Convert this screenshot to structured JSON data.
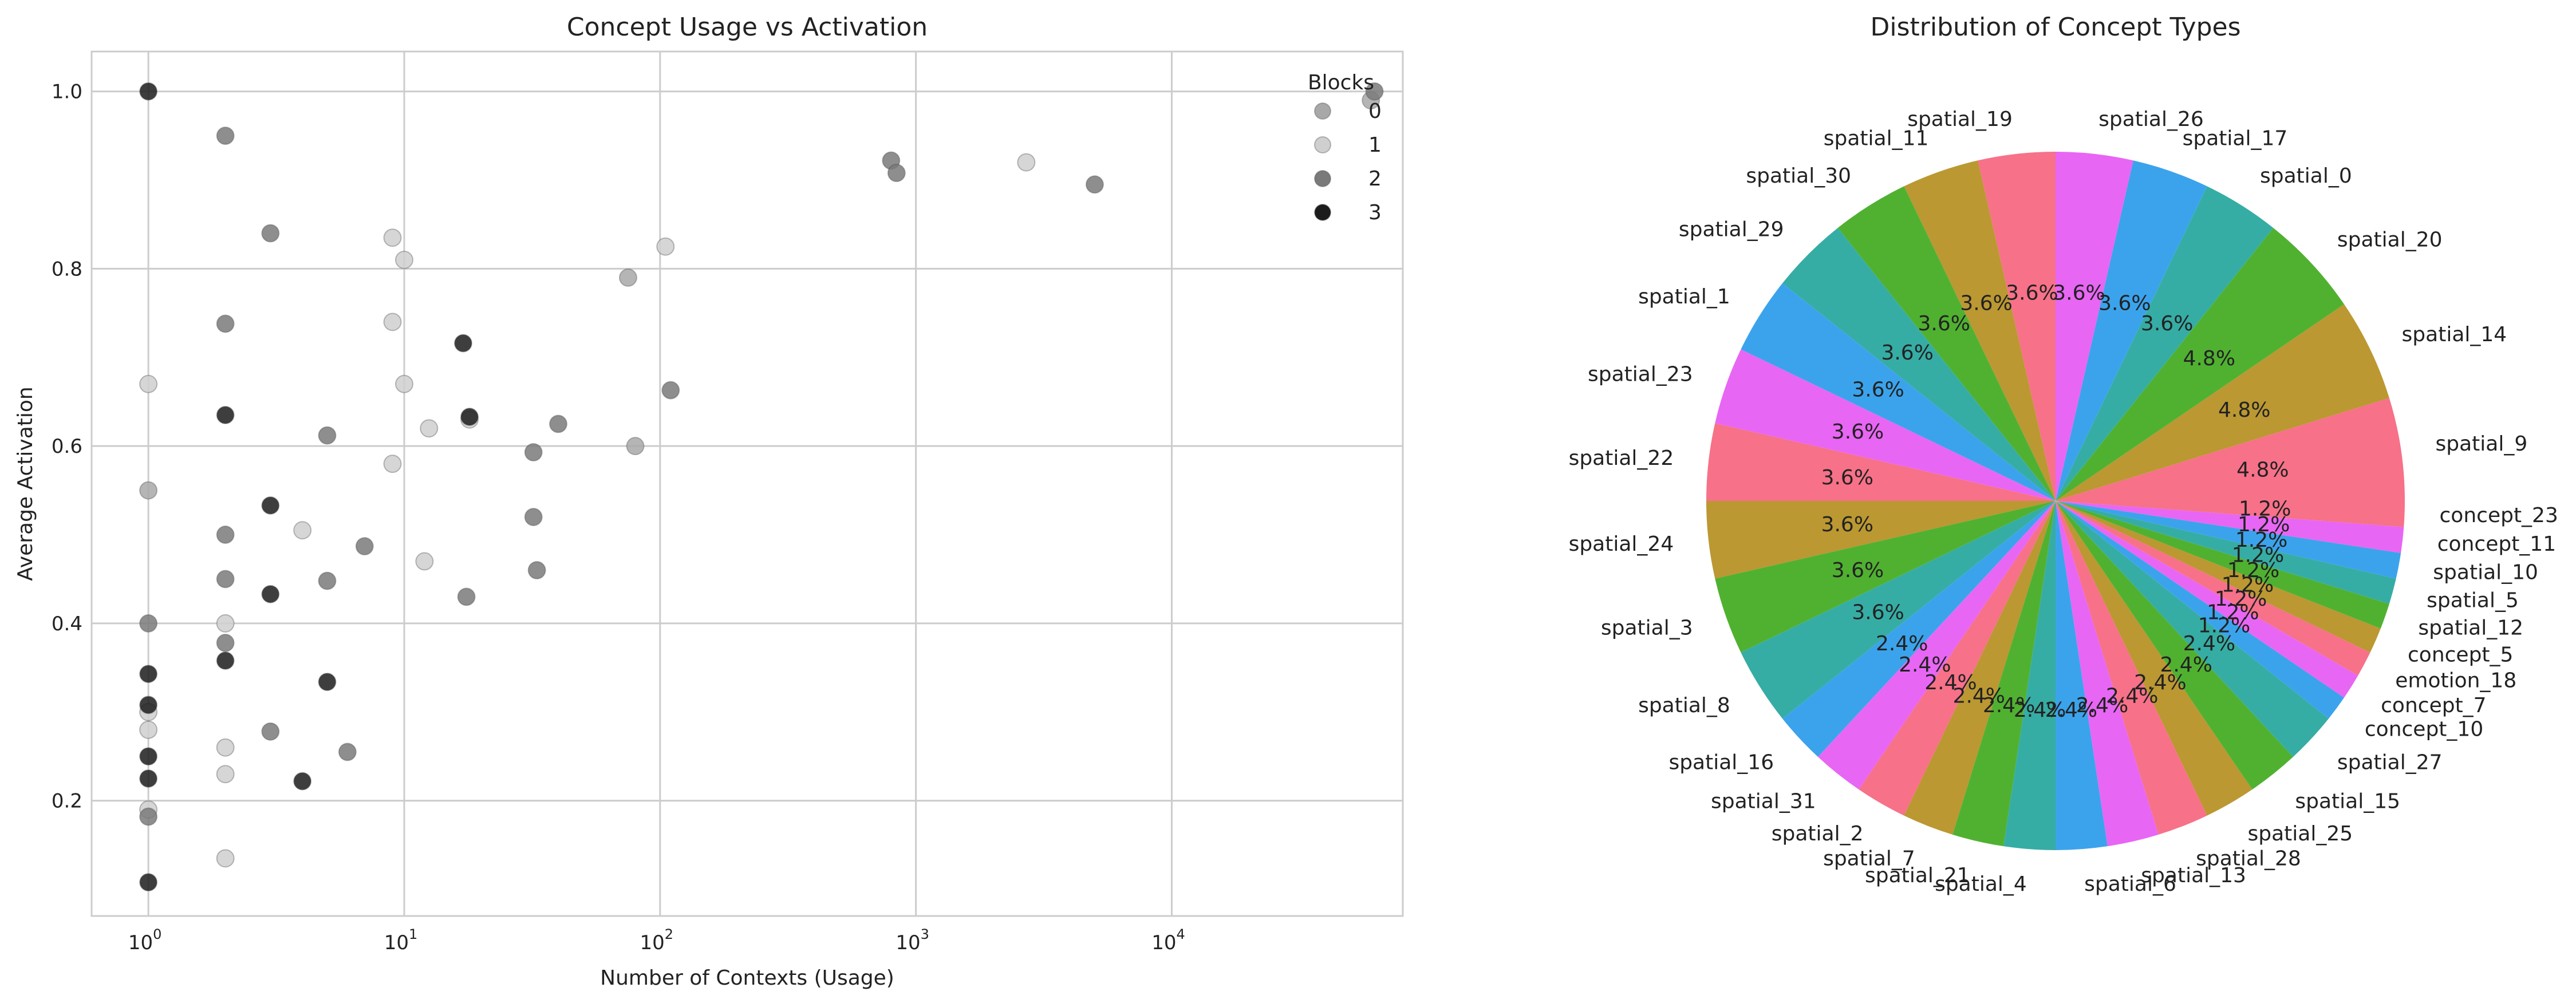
{
  "chart_data": [
    {
      "type": "scatter",
      "title": "Concept Usage vs Activation",
      "xlabel": "Number of Contexts (Usage)",
      "ylabel": "Average Activation",
      "xscale": "log",
      "xlim": [
        0.6,
        80000
      ],
      "ylim": [
        0.07,
        1.045
      ],
      "x_ticks": [
        {
          "value": 1,
          "base": "10",
          "exp": "0"
        },
        {
          "value": 10,
          "base": "10",
          "exp": "1"
        },
        {
          "value": 100,
          "base": "10",
          "exp": "2"
        },
        {
          "value": 1000,
          "base": "10",
          "exp": "3"
        },
        {
          "value": 10000,
          "base": "10",
          "exp": "4"
        }
      ],
      "y_ticks": [
        "0.2",
        "0.4",
        "0.6",
        "0.8",
        "1.0"
      ],
      "grid": true,
      "legend": {
        "title": "Blocks",
        "placement": "top-right",
        "entries": [
          {
            "label": "0",
            "color": "#a8a8a8"
          },
          {
            "label": "1",
            "color": "#cfcfcf"
          },
          {
            "label": "2",
            "color": "#7a7a7a"
          },
          {
            "label": "3",
            "color": "#1c1c1c"
          }
        ]
      },
      "series": [
        {
          "name": "0",
          "color": "#a8a8a8",
          "points": [
            [
              60000,
              0.99
            ],
            [
              1,
              0.55
            ],
            [
              80,
              0.6
            ],
            [
              75,
              0.79
            ]
          ]
        },
        {
          "name": "1",
          "color": "#cfcfcf",
          "points": [
            [
              1,
              0.67
            ],
            [
              1,
              0.28
            ],
            [
              1,
              0.3
            ],
            [
              2,
              0.26
            ],
            [
              2,
              0.23
            ],
            [
              2,
              0.135
            ],
            [
              2,
              0.4
            ],
            [
              4,
              0.505
            ],
            [
              9,
              0.835
            ],
            [
              10,
              0.81
            ],
            [
              9,
              0.74
            ],
            [
              10,
              0.67
            ],
            [
              9,
              0.58
            ],
            [
              12.5,
              0.62
            ],
            [
              18,
              0.63
            ],
            [
              105,
              0.825
            ],
            [
              2700,
              0.92
            ],
            [
              12,
              0.47
            ],
            [
              1,
              0.19
            ]
          ]
        },
        {
          "name": "2",
          "color": "#7a7a7a",
          "points": [
            [
              2,
              0.95
            ],
            [
              3,
              0.84
            ],
            [
              2,
              0.738
            ],
            [
              5,
              0.612
            ],
            [
              2,
              0.5
            ],
            [
              2,
              0.45
            ],
            [
              2,
              0.378
            ],
            [
              1,
              0.4
            ],
            [
              1,
              0.182
            ],
            [
              3,
              0.278
            ],
            [
              5,
              0.448
            ],
            [
              7,
              0.487
            ],
            [
              6,
              0.255
            ],
            [
              17.5,
              0.43
            ],
            [
              32,
              0.593
            ],
            [
              32,
              0.52
            ],
            [
              33,
              0.46
            ],
            [
              40,
              0.625
            ],
            [
              110,
              0.663
            ],
            [
              800,
              0.922
            ],
            [
              840,
              0.908
            ],
            [
              5000,
              0.895
            ],
            [
              62000,
              1.0
            ]
          ]
        },
        {
          "name": "3",
          "color": "#1c1c1c",
          "points": [
            [
              1,
              1.0
            ],
            [
              2,
              0.635
            ],
            [
              3,
              0.533
            ],
            [
              3,
              0.433
            ],
            [
              2,
              0.358
            ],
            [
              1,
              0.343
            ],
            [
              1,
              0.308
            ],
            [
              1,
              0.25
            ],
            [
              1,
              0.225
            ],
            [
              1,
              0.108
            ],
            [
              4,
              0.222
            ],
            [
              5,
              0.334
            ],
            [
              17,
              0.716
            ],
            [
              18,
              0.633
            ]
          ]
        }
      ]
    },
    {
      "type": "pie",
      "title": "Distribution of Concept Types",
      "slices": [
        {
          "label": "spatial_9",
          "pct": "4.8%",
          "value": 4.8,
          "color": "#f77189"
        },
        {
          "label": "spatial_14",
          "pct": "4.8%",
          "value": 4.8,
          "color": "#bb9832"
        },
        {
          "label": "spatial_20",
          "pct": "4.8%",
          "value": 4.8,
          "color": "#50b131"
        },
        {
          "label": "spatial_0",
          "pct": "3.6%",
          "value": 3.6,
          "color": "#36ada4"
        },
        {
          "label": "spatial_17",
          "pct": "3.6%",
          "value": 3.6,
          "color": "#3ba3ec"
        },
        {
          "label": "spatial_26",
          "pct": "3.6%",
          "value": 3.6,
          "color": "#e866f4"
        },
        {
          "label": "spatial_19",
          "pct": "3.6%",
          "value": 3.6,
          "color": "#f77189"
        },
        {
          "label": "spatial_11",
          "pct": "3.6%",
          "value": 3.6,
          "color": "#bb9832"
        },
        {
          "label": "spatial_30",
          "pct": "3.6%",
          "value": 3.6,
          "color": "#50b131"
        },
        {
          "label": "spatial_29",
          "pct": "3.6%",
          "value": 3.6,
          "color": "#36ada4"
        },
        {
          "label": "spatial_1",
          "pct": "3.6%",
          "value": 3.6,
          "color": "#3ba3ec"
        },
        {
          "label": "spatial_23",
          "pct": "3.6%",
          "value": 3.6,
          "color": "#e866f4"
        },
        {
          "label": "spatial_22",
          "pct": "3.6%",
          "value": 3.6,
          "color": "#f77189"
        },
        {
          "label": "spatial_24",
          "pct": "3.6%",
          "value": 3.6,
          "color": "#bb9832"
        },
        {
          "label": "spatial_3",
          "pct": "3.6%",
          "value": 3.6,
          "color": "#50b131"
        },
        {
          "label": "spatial_8",
          "pct": "3.6%",
          "value": 3.6,
          "color": "#36ada4"
        },
        {
          "label": "spatial_16",
          "pct": "2.4%",
          "value": 2.4,
          "color": "#3ba3ec"
        },
        {
          "label": "spatial_31",
          "pct": "2.4%",
          "value": 2.4,
          "color": "#e866f4"
        },
        {
          "label": "spatial_2",
          "pct": "2.4%",
          "value": 2.4,
          "color": "#f77189"
        },
        {
          "label": "spatial_7",
          "pct": "2.4%",
          "value": 2.4,
          "color": "#bb9832"
        },
        {
          "label": "spatial_21",
          "pct": "2.4%",
          "value": 2.4,
          "color": "#50b131"
        },
        {
          "label": "spatial_4",
          "pct": "2.4%",
          "value": 2.4,
          "color": "#36ada4"
        },
        {
          "label": "spatial_6",
          "pct": "2.4%",
          "value": 2.4,
          "color": "#3ba3ec"
        },
        {
          "label": "spatial_13",
          "pct": "2.4%",
          "value": 2.4,
          "color": "#e866f4"
        },
        {
          "label": "spatial_28",
          "pct": "2.4%",
          "value": 2.4,
          "color": "#f77189"
        },
        {
          "label": "spatial_25",
          "pct": "2.4%",
          "value": 2.4,
          "color": "#bb9832"
        },
        {
          "label": "spatial_15",
          "pct": "2.4%",
          "value": 2.4,
          "color": "#50b131"
        },
        {
          "label": "spatial_27",
          "pct": "2.4%",
          "value": 2.4,
          "color": "#36ada4"
        },
        {
          "label": "concept_10",
          "pct": "1.2%",
          "value": 1.2,
          "color": "#3ba3ec"
        },
        {
          "label": "concept_7",
          "pct": "1.2%",
          "value": 1.2,
          "color": "#e866f4"
        },
        {
          "label": "emotion_18",
          "pct": "1.2%",
          "value": 1.2,
          "color": "#f77189"
        },
        {
          "label": "concept_5",
          "pct": "1.2%",
          "value": 1.2,
          "color": "#bb9832"
        },
        {
          "label": "spatial_12",
          "pct": "1.2%",
          "value": 1.2,
          "color": "#50b131"
        },
        {
          "label": "spatial_5",
          "pct": "1.2%",
          "value": 1.2,
          "color": "#36ada4"
        },
        {
          "label": "spatial_10",
          "pct": "1.2%",
          "value": 1.2,
          "color": "#3ba3ec"
        },
        {
          "label": "concept_11",
          "pct": "1.2%",
          "value": 1.2,
          "color": "#e866f4"
        },
        {
          "label": "concept_23",
          "pct": "1.2%",
          "value": 1.2,
          "color": "#f77189"
        }
      ]
    }
  ]
}
